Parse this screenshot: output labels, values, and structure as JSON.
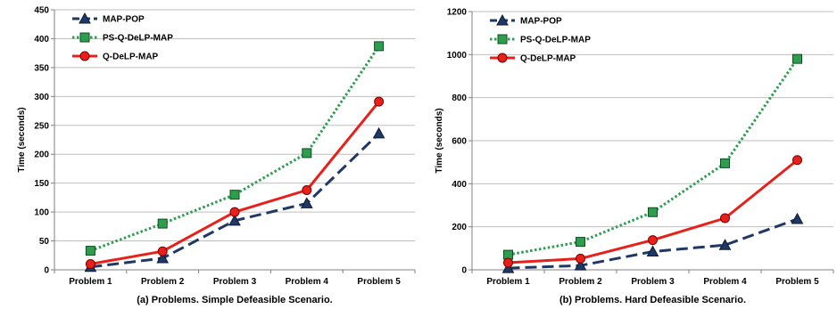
{
  "chart_data": [
    {
      "type": "line",
      "caption": "(a) Problems. Simple Defeasible Scenario.",
      "ylabel": "Time (seconds)",
      "xlabel": "",
      "categories": [
        "Problem 1",
        "Problem 2",
        "Problem 3",
        "Problem 4",
        "Problem 5"
      ],
      "ylim": [
        0,
        450
      ],
      "yticks": [
        0,
        50,
        100,
        150,
        200,
        250,
        300,
        350,
        400,
        450
      ],
      "grid": true,
      "legend_position": "top-left",
      "series": [
        {
          "name": "MAP-POP",
          "values": [
            5,
            20,
            85,
            115,
            236
          ],
          "color": "#1f3864",
          "marker": "triangle",
          "dash": "long-dash"
        },
        {
          "name": "PS-Q-DeLP-MAP",
          "values": [
            33,
            80,
            130,
            202,
            387
          ],
          "color": "#2e9e4e",
          "marker": "square",
          "dash": "dotted"
        },
        {
          "name": "Q-DeLP-MAP",
          "values": [
            10,
            32,
            100,
            138,
            291
          ],
          "color": "#e8201a",
          "marker": "circle",
          "dash": "solid"
        }
      ]
    },
    {
      "type": "line",
      "caption": "(b) Problems. Hard Defeasible Scenario.",
      "ylabel": "Time (seconds)",
      "xlabel": "",
      "categories": [
        "Problem 1",
        "Problem 2",
        "Problem 3",
        "Problem 4",
        "Problem 5"
      ],
      "ylim": [
        0,
        1200
      ],
      "yticks": [
        0,
        200,
        400,
        600,
        800,
        1000,
        1200
      ],
      "grid": true,
      "legend_position": "top-left",
      "series": [
        {
          "name": "MAP-POP",
          "values": [
            8,
            20,
            85,
            115,
            236
          ],
          "color": "#1f3864",
          "marker": "triangle",
          "dash": "long-dash"
        },
        {
          "name": "PS-Q-DeLP-MAP",
          "values": [
            70,
            130,
            268,
            495,
            980
          ],
          "color": "#2e9e4e",
          "marker": "square",
          "dash": "dotted"
        },
        {
          "name": "Q-DeLP-MAP",
          "values": [
            33,
            52,
            138,
            240,
            510
          ],
          "color": "#e8201a",
          "marker": "circle",
          "dash": "solid"
        }
      ]
    }
  ]
}
